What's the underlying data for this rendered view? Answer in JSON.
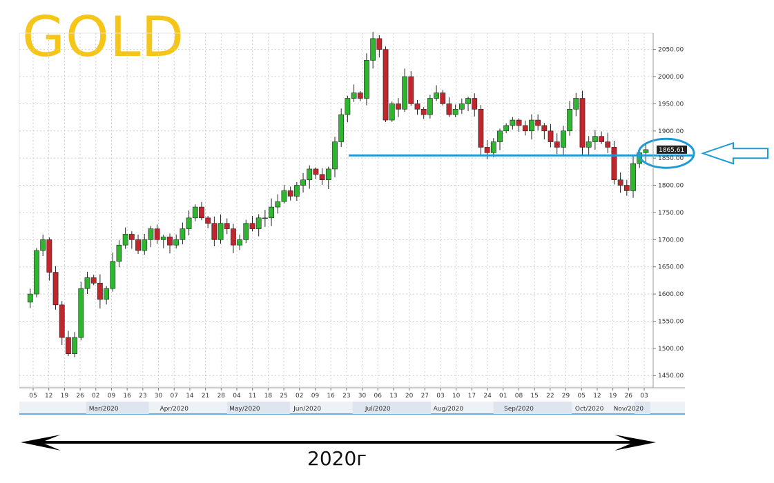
{
  "page": {
    "title": "GOLD",
    "caption": "2020г"
  },
  "colors": {
    "title": "#f5c518",
    "up": "#2fb52f",
    "down": "#c0262c",
    "annotation": "#1e9bd7",
    "axis": "#555555",
    "grid": "#cfcfcf"
  },
  "chart_data": {
    "type": "candlestick",
    "title": "GOLD",
    "xlabel": "",
    "ylabel": "",
    "ylim": [
      1430,
      2080
    ],
    "grid": true,
    "y_ticks": [
      "1450.00",
      "1500.00",
      "1550.00",
      "1600.00",
      "1650.00",
      "1700.00",
      "1750.00",
      "1800.00",
      "1850.00",
      "1900.00",
      "1950.00",
      "2000.00",
      "2050.00"
    ],
    "x_ticks": [
      "05",
      "12",
      "19",
      "26",
      "02",
      "09",
      "16",
      "23",
      "30",
      "07",
      "14",
      "21",
      "28",
      "04",
      "11",
      "18",
      "25",
      "02",
      "09",
      "16",
      "23",
      "30",
      "06",
      "13",
      "20",
      "27",
      "03",
      "10",
      "17",
      "24",
      "01",
      "08",
      "15",
      "22",
      "29",
      "05",
      "12",
      "19",
      "26",
      "03"
    ],
    "months": [
      "Mar/2020",
      "Apr/2020",
      "May/2020",
      "Jun/2020",
      "Jul/2020",
      "Aug/2020",
      "Sep/2020",
      "Oct/2020",
      "Nov/2020"
    ],
    "last_price": "1865.61",
    "support_level": 1855,
    "close_path": [
      1585,
      1600,
      1680,
      1700,
      1640,
      1580,
      1520,
      1490,
      1520,
      1610,
      1630,
      1620,
      1590,
      1610,
      1660,
      1690,
      1710,
      1700,
      1680,
      1700,
      1720,
      1700,
      1705,
      1690,
      1700,
      1720,
      1740,
      1760,
      1740,
      1730,
      1700,
      1730,
      1720,
      1690,
      1700,
      1730,
      1720,
      1740,
      1740,
      1760,
      1770,
      1790,
      1780,
      1800,
      1810,
      1830,
      1820,
      1810,
      1830,
      1880,
      1930,
      1960,
      1970,
      1960,
      2030,
      2070,
      2050,
      1920,
      1950,
      1940,
      2000,
      1950,
      1940,
      1930,
      1960,
      1970,
      1950,
      1930,
      1940,
      1950,
      1960,
      1940,
      1870,
      1860,
      1880,
      1900,
      1910,
      1920,
      1910,
      1900,
      1920,
      1910,
      1900,
      1880,
      1870,
      1900,
      1940,
      1960,
      1870,
      1880,
      1890,
      1880,
      1870,
      1810,
      1800,
      1790,
      1840,
      1860,
      1865.61
    ]
  }
}
